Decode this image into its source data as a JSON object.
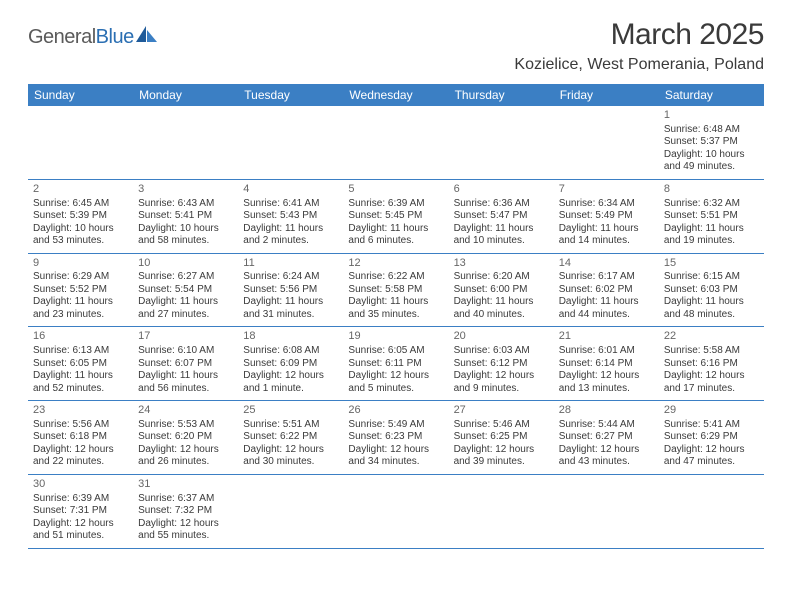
{
  "brand": {
    "name_a": "General",
    "name_b": "Blue"
  },
  "title": "March 2025",
  "location": "Kozielice, West Pomerania, Poland",
  "colors": {
    "header_bg": "#3b7fc4",
    "header_text": "#ffffff",
    "border": "#3b7fc4",
    "text": "#3a3a3a",
    "logo_gray": "#5a5a5a",
    "logo_blue": "#2b6fb3",
    "daynum": "#666666"
  },
  "day_labels": [
    "Sunday",
    "Monday",
    "Tuesday",
    "Wednesday",
    "Thursday",
    "Friday",
    "Saturday"
  ],
  "weeks": [
    [
      null,
      null,
      null,
      null,
      null,
      null,
      {
        "n": "1",
        "sr": "Sunrise: 6:48 AM",
        "ss": "Sunset: 5:37 PM",
        "dl": "Daylight: 10 hours and 49 minutes."
      }
    ],
    [
      {
        "n": "2",
        "sr": "Sunrise: 6:45 AM",
        "ss": "Sunset: 5:39 PM",
        "dl": "Daylight: 10 hours and 53 minutes."
      },
      {
        "n": "3",
        "sr": "Sunrise: 6:43 AM",
        "ss": "Sunset: 5:41 PM",
        "dl": "Daylight: 10 hours and 58 minutes."
      },
      {
        "n": "4",
        "sr": "Sunrise: 6:41 AM",
        "ss": "Sunset: 5:43 PM",
        "dl": "Daylight: 11 hours and 2 minutes."
      },
      {
        "n": "5",
        "sr": "Sunrise: 6:39 AM",
        "ss": "Sunset: 5:45 PM",
        "dl": "Daylight: 11 hours and 6 minutes."
      },
      {
        "n": "6",
        "sr": "Sunrise: 6:36 AM",
        "ss": "Sunset: 5:47 PM",
        "dl": "Daylight: 11 hours and 10 minutes."
      },
      {
        "n": "7",
        "sr": "Sunrise: 6:34 AM",
        "ss": "Sunset: 5:49 PM",
        "dl": "Daylight: 11 hours and 14 minutes."
      },
      {
        "n": "8",
        "sr": "Sunrise: 6:32 AM",
        "ss": "Sunset: 5:51 PM",
        "dl": "Daylight: 11 hours and 19 minutes."
      }
    ],
    [
      {
        "n": "9",
        "sr": "Sunrise: 6:29 AM",
        "ss": "Sunset: 5:52 PM",
        "dl": "Daylight: 11 hours and 23 minutes."
      },
      {
        "n": "10",
        "sr": "Sunrise: 6:27 AM",
        "ss": "Sunset: 5:54 PM",
        "dl": "Daylight: 11 hours and 27 minutes."
      },
      {
        "n": "11",
        "sr": "Sunrise: 6:24 AM",
        "ss": "Sunset: 5:56 PM",
        "dl": "Daylight: 11 hours and 31 minutes."
      },
      {
        "n": "12",
        "sr": "Sunrise: 6:22 AM",
        "ss": "Sunset: 5:58 PM",
        "dl": "Daylight: 11 hours and 35 minutes."
      },
      {
        "n": "13",
        "sr": "Sunrise: 6:20 AM",
        "ss": "Sunset: 6:00 PM",
        "dl": "Daylight: 11 hours and 40 minutes."
      },
      {
        "n": "14",
        "sr": "Sunrise: 6:17 AM",
        "ss": "Sunset: 6:02 PM",
        "dl": "Daylight: 11 hours and 44 minutes."
      },
      {
        "n": "15",
        "sr": "Sunrise: 6:15 AM",
        "ss": "Sunset: 6:03 PM",
        "dl": "Daylight: 11 hours and 48 minutes."
      }
    ],
    [
      {
        "n": "16",
        "sr": "Sunrise: 6:13 AM",
        "ss": "Sunset: 6:05 PM",
        "dl": "Daylight: 11 hours and 52 minutes."
      },
      {
        "n": "17",
        "sr": "Sunrise: 6:10 AM",
        "ss": "Sunset: 6:07 PM",
        "dl": "Daylight: 11 hours and 56 minutes."
      },
      {
        "n": "18",
        "sr": "Sunrise: 6:08 AM",
        "ss": "Sunset: 6:09 PM",
        "dl": "Daylight: 12 hours and 1 minute."
      },
      {
        "n": "19",
        "sr": "Sunrise: 6:05 AM",
        "ss": "Sunset: 6:11 PM",
        "dl": "Daylight: 12 hours and 5 minutes."
      },
      {
        "n": "20",
        "sr": "Sunrise: 6:03 AM",
        "ss": "Sunset: 6:12 PM",
        "dl": "Daylight: 12 hours and 9 minutes."
      },
      {
        "n": "21",
        "sr": "Sunrise: 6:01 AM",
        "ss": "Sunset: 6:14 PM",
        "dl": "Daylight: 12 hours and 13 minutes."
      },
      {
        "n": "22",
        "sr": "Sunrise: 5:58 AM",
        "ss": "Sunset: 6:16 PM",
        "dl": "Daylight: 12 hours and 17 minutes."
      }
    ],
    [
      {
        "n": "23",
        "sr": "Sunrise: 5:56 AM",
        "ss": "Sunset: 6:18 PM",
        "dl": "Daylight: 12 hours and 22 minutes."
      },
      {
        "n": "24",
        "sr": "Sunrise: 5:53 AM",
        "ss": "Sunset: 6:20 PM",
        "dl": "Daylight: 12 hours and 26 minutes."
      },
      {
        "n": "25",
        "sr": "Sunrise: 5:51 AM",
        "ss": "Sunset: 6:22 PM",
        "dl": "Daylight: 12 hours and 30 minutes."
      },
      {
        "n": "26",
        "sr": "Sunrise: 5:49 AM",
        "ss": "Sunset: 6:23 PM",
        "dl": "Daylight: 12 hours and 34 minutes."
      },
      {
        "n": "27",
        "sr": "Sunrise: 5:46 AM",
        "ss": "Sunset: 6:25 PM",
        "dl": "Daylight: 12 hours and 39 minutes."
      },
      {
        "n": "28",
        "sr": "Sunrise: 5:44 AM",
        "ss": "Sunset: 6:27 PM",
        "dl": "Daylight: 12 hours and 43 minutes."
      },
      {
        "n": "29",
        "sr": "Sunrise: 5:41 AM",
        "ss": "Sunset: 6:29 PM",
        "dl": "Daylight: 12 hours and 47 minutes."
      }
    ],
    [
      {
        "n": "30",
        "sr": "Sunrise: 6:39 AM",
        "ss": "Sunset: 7:31 PM",
        "dl": "Daylight: 12 hours and 51 minutes."
      },
      {
        "n": "31",
        "sr": "Sunrise: 6:37 AM",
        "ss": "Sunset: 7:32 PM",
        "dl": "Daylight: 12 hours and 55 minutes."
      },
      null,
      null,
      null,
      null,
      null
    ]
  ]
}
